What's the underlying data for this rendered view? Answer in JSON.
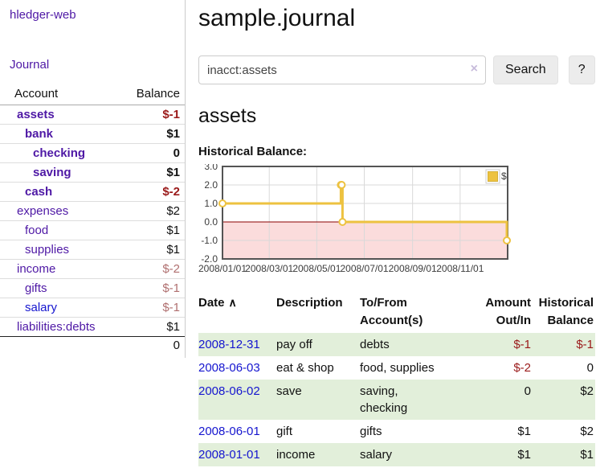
{
  "brand": "hledger-web",
  "nav": {
    "journal": "Journal"
  },
  "sidebar": {
    "header": {
      "account": "Account",
      "balance": "Balance"
    },
    "accounts": [
      {
        "name": "assets",
        "depth": 0,
        "bold": true,
        "link": "purple",
        "balance": "$-1",
        "bal": "neg-strong"
      },
      {
        "name": "bank",
        "depth": 1,
        "bold": true,
        "link": "purple",
        "balance": "$1",
        "bal": "plain-bold"
      },
      {
        "name": "checking",
        "depth": 2,
        "bold": true,
        "link": "purple",
        "balance": "0",
        "bal": "plain-bold"
      },
      {
        "name": "saving",
        "depth": 2,
        "bold": true,
        "link": "purple",
        "balance": "$1",
        "bal": "plain-bold"
      },
      {
        "name": "cash",
        "depth": 1,
        "bold": true,
        "link": "purple",
        "balance": "$-2",
        "bal": "neg-strong"
      },
      {
        "name": "expenses",
        "depth": 0,
        "bold": false,
        "link": "purple",
        "balance": "$2",
        "bal": "plain"
      },
      {
        "name": "food",
        "depth": 1,
        "bold": false,
        "link": "purple",
        "balance": "$1",
        "bal": "plain"
      },
      {
        "name": "supplies",
        "depth": 1,
        "bold": false,
        "link": "purple",
        "balance": "$1",
        "bal": "plain"
      },
      {
        "name": "income",
        "depth": 0,
        "bold": false,
        "link": "purple",
        "balance": "$-2",
        "bal": "neg-soft"
      },
      {
        "name": "gifts",
        "depth": 1,
        "bold": false,
        "link": "purple",
        "balance": "$-1",
        "bal": "neg-soft"
      },
      {
        "name": "salary",
        "depth": 1,
        "bold": false,
        "link": "blue",
        "balance": "$-1",
        "bal": "neg-soft"
      },
      {
        "name": "liabilities:debts",
        "depth": 0,
        "bold": false,
        "link": "purple",
        "balance": "$1",
        "bal": "plain"
      }
    ],
    "total": "0"
  },
  "main": {
    "title": "sample.journal",
    "search": {
      "value": "inacct:assets",
      "clear": "×",
      "button": "Search",
      "help": "?"
    },
    "account_heading": "assets",
    "chart_title": "Historical Balance:"
  },
  "chart_data": {
    "type": "line",
    "step": true,
    "title": "Historical Balance:",
    "series": [
      {
        "name": "$",
        "color": "#edc240",
        "points": [
          [
            "2008-01-01",
            1
          ],
          [
            "2008-06-01",
            2
          ],
          [
            "2008-06-02",
            2
          ],
          [
            "2008-06-03",
            0
          ],
          [
            "2008-12-31",
            -1
          ]
        ]
      }
    ],
    "x_start": "2008-01-01",
    "x_days": 366,
    "ylim": [
      -2,
      3
    ],
    "yticks": [
      3,
      2,
      1,
      0,
      -1,
      -2
    ],
    "ytick_labels": [
      "3.0",
      "2.0",
      "1.0",
      "0.0",
      "-1.0",
      "-2.0"
    ],
    "xticks": [
      "2008/01/01",
      "2008/03/01",
      "2008/05/01",
      "2008/07/01",
      "2008/09/01",
      "2008/11/01"
    ],
    "legend_label": "$",
    "legend_position": "top-right",
    "grid": true,
    "zero_line_color": "#8b0000",
    "negative_fill": "#fbdcdc",
    "grid_color": "#d9d9d9",
    "border_color": "#545454"
  },
  "register": {
    "headers": {
      "date": "Date",
      "sort_icon": "∧",
      "description": "Description",
      "accounts": "To/From Account(s)",
      "amount": "Amount Out/In",
      "balance": "Historical Balance"
    },
    "rows": [
      {
        "date": "2008-12-31",
        "description": "pay off",
        "accounts": "debts",
        "amount": "$-1",
        "amount_neg": true,
        "balance": "$-1",
        "balance_neg": true
      },
      {
        "date": "2008-06-03",
        "description": "eat & shop",
        "accounts": "food, supplies",
        "amount": "$-2",
        "amount_neg": true,
        "balance": "0",
        "balance_neg": false
      },
      {
        "date": "2008-06-02",
        "description": "save",
        "accounts": "saving,\nchecking",
        "amount": "0",
        "amount_neg": false,
        "balance": "$2",
        "balance_neg": false
      },
      {
        "date": "2008-06-01",
        "description": "gift",
        "accounts": "gifts",
        "amount": "$1",
        "amount_neg": false,
        "balance": "$2",
        "balance_neg": false
      },
      {
        "date": "2008-01-01",
        "description": "income",
        "accounts": "salary",
        "amount": "$1",
        "amount_neg": false,
        "balance": "$1",
        "balance_neg": false
      }
    ]
  },
  "colors": {
    "link_purple": "#4e18a5",
    "link_blue": "#1515cf",
    "negative_strong": "#9a1a1a",
    "negative_soft": "#b06f6f",
    "row_stripe_green": "#e2efda",
    "series_yellow": "#edc240"
  }
}
